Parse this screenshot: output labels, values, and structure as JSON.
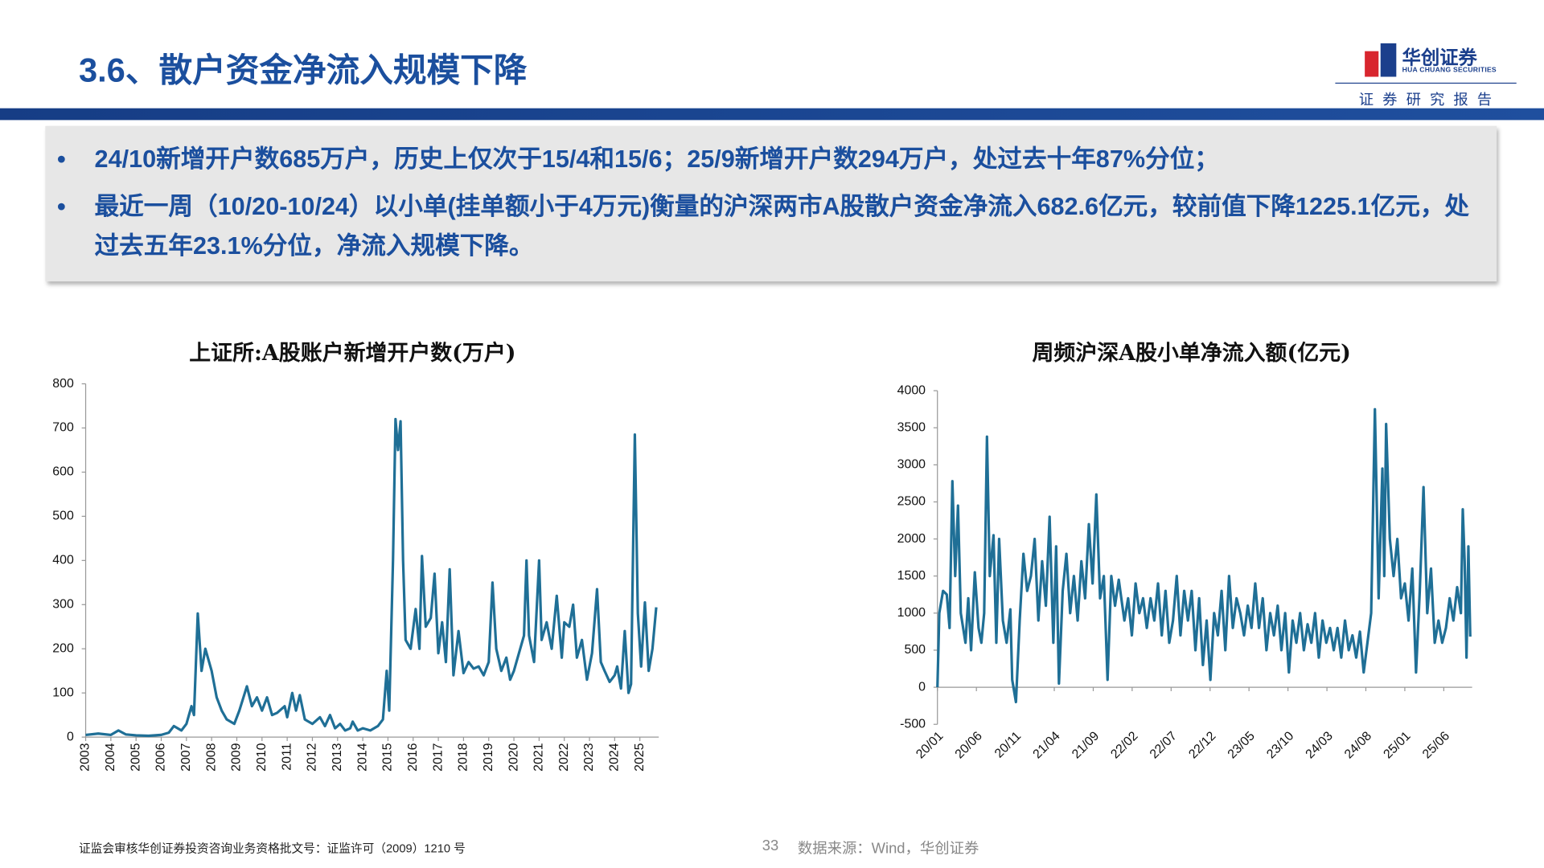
{
  "header": {
    "title": "3.6、散户资金净流入规模下降",
    "logo_cn": "华创证券",
    "logo_en": "HUA CHUANG SECURITIES",
    "tag": "证券研究报告"
  },
  "bullets": [
    "24/10新增开户数685万户，历史上仅次于15/4和15/6；25/9新增开户数294万户，处过去十年87%分位；",
    "最近一周（10/20-10/24）以小单(挂单额小于4万元)衡量的沪深两市A股散户资金净流入682.6亿元，较前值下降1225.1亿元，处过去五年23.1%分位，净流入规模下降。"
  ],
  "chart_data": [
    {
      "type": "line",
      "title": "上证所:A股账户新增开户数(万户)",
      "color": "#1f6f96",
      "grid": false,
      "xlim": [
        2003,
        2025.75
      ],
      "xticks": [
        2003,
        2004,
        2005,
        2006,
        2007,
        2008,
        2009,
        2010,
        2011,
        2012,
        2013,
        2014,
        2015,
        2016,
        2017,
        2018,
        2019,
        2020,
        2021,
        2022,
        2023,
        2024,
        2025
      ],
      "ylim": [
        0,
        800
      ],
      "yticks": [
        0,
        100,
        200,
        300,
        400,
        500,
        600,
        700,
        800
      ],
      "x": [
        2003.0,
        2003.5,
        2004.0,
        2004.3,
        2004.6,
        2005.0,
        2005.5,
        2006.0,
        2006.3,
        2006.5,
        2006.8,
        2007.0,
        2007.2,
        2007.3,
        2007.45,
        2007.6,
        2007.75,
        2008.0,
        2008.2,
        2008.4,
        2008.6,
        2008.9,
        2009.1,
        2009.4,
        2009.6,
        2009.8,
        2010.0,
        2010.2,
        2010.4,
        2010.6,
        2010.9,
        2011.0,
        2011.2,
        2011.35,
        2011.5,
        2011.7,
        2012.0,
        2012.3,
        2012.5,
        2012.7,
        2012.9,
        2013.1,
        2013.3,
        2013.5,
        2013.6,
        2013.8,
        2014.0,
        2014.3,
        2014.6,
        2014.8,
        2014.95,
        2015.05,
        2015.2,
        2015.3,
        2015.4,
        2015.5,
        2015.6,
        2015.7,
        2015.9,
        2016.1,
        2016.25,
        2016.35,
        2016.5,
        2016.7,
        2016.85,
        2017.0,
        2017.15,
        2017.3,
        2017.45,
        2017.6,
        2017.8,
        2018.0,
        2018.2,
        2018.4,
        2018.6,
        2018.8,
        2019.0,
        2019.15,
        2019.3,
        2019.5,
        2019.7,
        2019.85,
        2020.0,
        2020.2,
        2020.4,
        2020.5,
        2020.6,
        2020.8,
        2021.0,
        2021.1,
        2021.3,
        2021.5,
        2021.7,
        2021.9,
        2022.0,
        2022.2,
        2022.35,
        2022.5,
        2022.7,
        2022.9,
        2023.1,
        2023.3,
        2023.45,
        2023.6,
        2023.8,
        2024.0,
        2024.1,
        2024.25,
        2024.4,
        2024.55,
        2024.65,
        2024.8,
        2024.92,
        2025.05,
        2025.2,
        2025.35,
        2025.5,
        2025.65
      ],
      "values": [
        5,
        8,
        5,
        15,
        6,
        4,
        3,
        5,
        10,
        25,
        15,
        30,
        70,
        50,
        280,
        150,
        200,
        150,
        90,
        60,
        40,
        30,
        60,
        115,
        70,
        90,
        60,
        90,
        50,
        55,
        70,
        45,
        100,
        60,
        95,
        40,
        30,
        45,
        25,
        50,
        20,
        30,
        15,
        20,
        35,
        15,
        20,
        15,
        25,
        40,
        150,
        60,
        400,
        720,
        650,
        715,
        400,
        220,
        200,
        290,
        200,
        410,
        250,
        270,
        370,
        190,
        260,
        170,
        380,
        140,
        240,
        145,
        170,
        155,
        160,
        140,
        170,
        350,
        200,
        150,
        180,
        130,
        150,
        190,
        230,
        400,
        230,
        170,
        400,
        220,
        260,
        200,
        320,
        180,
        260,
        250,
        300,
        180,
        220,
        130,
        190,
        335,
        170,
        150,
        125,
        140,
        160,
        110,
        240,
        100,
        120,
        685,
        280,
        160,
        305,
        150,
        200,
        294
      ]
    },
    {
      "type": "line",
      "title": "周频沪深A股小单净流入额(亿元)",
      "color": "#1f6f96",
      "grid": false,
      "xlim": [
        2020,
        2025.72
      ],
      "xticks": [
        {
          "value": 2020.0,
          "label": "20/01"
        },
        {
          "value": 2020.417,
          "label": "20/06"
        },
        {
          "value": 2020.833,
          "label": "20/11"
        },
        {
          "value": 2021.25,
          "label": "21/04"
        },
        {
          "value": 2021.667,
          "label": "21/09"
        },
        {
          "value": 2022.083,
          "label": "22/02"
        },
        {
          "value": 2022.5,
          "label": "22/07"
        },
        {
          "value": 2022.917,
          "label": "22/12"
        },
        {
          "value": 2023.333,
          "label": "23/05"
        },
        {
          "value": 2023.75,
          "label": "23/10"
        },
        {
          "value": 2024.167,
          "label": "24/03"
        },
        {
          "value": 2024.583,
          "label": "24/08"
        },
        {
          "value": 2025.0,
          "label": "25/01"
        },
        {
          "value": 2025.417,
          "label": "25/06"
        }
      ],
      "ylim": [
        -500,
        4000
      ],
      "yticks": [
        -500,
        0,
        500,
        1000,
        1500,
        2000,
        2500,
        3000,
        3500,
        4000
      ],
      "x": [
        2020.0,
        2020.02,
        2020.06,
        2020.1,
        2020.13,
        2020.16,
        2020.19,
        2020.22,
        2020.25,
        2020.3,
        2020.33,
        2020.36,
        2020.4,
        2020.44,
        2020.47,
        2020.5,
        2020.53,
        2020.56,
        2020.6,
        2020.63,
        2020.66,
        2020.7,
        2020.74,
        2020.78,
        2020.8,
        2020.84,
        2020.88,
        2020.92,
        2020.96,
        2021.0,
        2021.04,
        2021.08,
        2021.12,
        2021.16,
        2021.2,
        2021.24,
        2021.27,
        2021.3,
        2021.34,
        2021.38,
        2021.42,
        2021.46,
        2021.5,
        2021.54,
        2021.58,
        2021.62,
        2021.66,
        2021.7,
        2021.74,
        2021.78,
        2021.82,
        2021.86,
        2021.9,
        2021.94,
        2022.0,
        2022.04,
        2022.08,
        2022.12,
        2022.16,
        2022.2,
        2022.24,
        2022.28,
        2022.32,
        2022.36,
        2022.4,
        2022.44,
        2022.48,
        2022.52,
        2022.56,
        2022.6,
        2022.64,
        2022.68,
        2022.72,
        2022.76,
        2022.8,
        2022.84,
        2022.88,
        2022.92,
        2022.96,
        2023.0,
        2023.04,
        2023.08,
        2023.12,
        2023.16,
        2023.2,
        2023.24,
        2023.28,
        2023.32,
        2023.36,
        2023.4,
        2023.44,
        2023.48,
        2023.52,
        2023.56,
        2023.6,
        2023.64,
        2023.68,
        2023.72,
        2023.76,
        2023.8,
        2023.84,
        2023.88,
        2023.92,
        2023.96,
        2024.0,
        2024.04,
        2024.08,
        2024.12,
        2024.16,
        2024.2,
        2024.24,
        2024.28,
        2024.32,
        2024.36,
        2024.4,
        2024.44,
        2024.48,
        2024.52,
        2024.56,
        2024.6,
        2024.64,
        2024.68,
        2024.72,
        2024.76,
        2024.78,
        2024.8,
        2024.84,
        2024.88,
        2024.92,
        2024.96,
        2025.0,
        2025.04,
        2025.08,
        2025.12,
        2025.16,
        2025.2,
        2025.24,
        2025.28,
        2025.32,
        2025.36,
        2025.4,
        2025.44,
        2025.48,
        2025.52,
        2025.56,
        2025.6,
        2025.62,
        2025.64,
        2025.66,
        2025.68,
        2025.7
      ],
      "values": [
        0,
        1000,
        1300,
        1250,
        800,
        2780,
        1500,
        2450,
        1000,
        600,
        1200,
        500,
        1550,
        800,
        600,
        1000,
        3380,
        1500,
        2050,
        600,
        2000,
        900,
        600,
        1050,
        100,
        -200,
        900,
        1800,
        1300,
        1500,
        2000,
        900,
        1700,
        1100,
        2300,
        600,
        1900,
        50,
        1300,
        1800,
        1000,
        1500,
        900,
        1700,
        1200,
        2200,
        1400,
        2600,
        1200,
        1500,
        100,
        1500,
        1100,
        1450,
        900,
        1200,
        700,
        1400,
        1000,
        1200,
        800,
        1200,
        900,
        1400,
        700,
        1300,
        600,
        900,
        1500,
        700,
        1300,
        900,
        1300,
        500,
        1200,
        300,
        900,
        100,
        1000,
        700,
        1300,
        500,
        1500,
        800,
        1200,
        1000,
        700,
        1100,
        800,
        1400,
        800,
        1200,
        500,
        1000,
        700,
        1100,
        500,
        1000,
        200,
        900,
        600,
        1000,
        500,
        850,
        600,
        1000,
        400,
        900,
        600,
        800,
        500,
        800,
        400,
        900,
        500,
        700,
        400,
        750,
        200,
        600,
        1000,
        3750,
        1200,
        2950,
        1500,
        3550,
        2000,
        1500,
        2000,
        1200,
        1400,
        900,
        1600,
        200,
        1300,
        2700,
        1000,
        1600,
        600,
        900,
        600,
        800,
        1200,
        900,
        1350,
        1000,
        2400,
        1700,
        400,
        1900,
        683
      ]
    }
  ],
  "footer": {
    "license": "证监会审核华创证券投资咨询业务资格批文号：证监许可（2009）1210 号",
    "page": "33",
    "source": "数据来源：Wind，华创证券"
  }
}
